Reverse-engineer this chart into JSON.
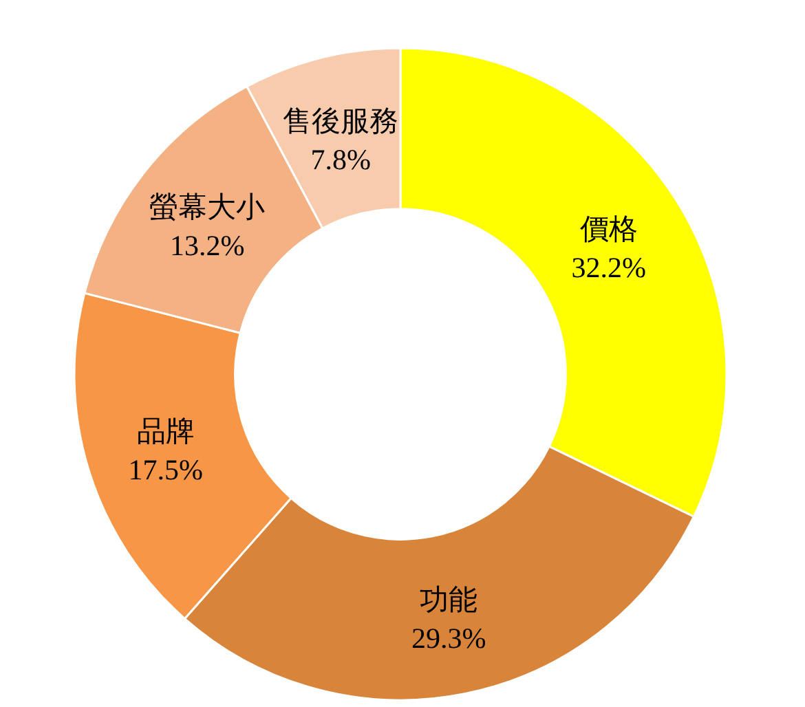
{
  "chart_data": {
    "type": "donut",
    "categories": [
      "價格",
      "功能",
      "品牌",
      "螢幕大小",
      "售後服務"
    ],
    "values": [
      32.2,
      29.3,
      17.5,
      13.2,
      7.8
    ],
    "colors": [
      "#ffff00",
      "#d9843b",
      "#f79646",
      "#f4b183",
      "#f8cbad"
    ],
    "value_labels": [
      "32.2%",
      "29.3%",
      "17.5%",
      "13.2%",
      "7.8%"
    ]
  }
}
